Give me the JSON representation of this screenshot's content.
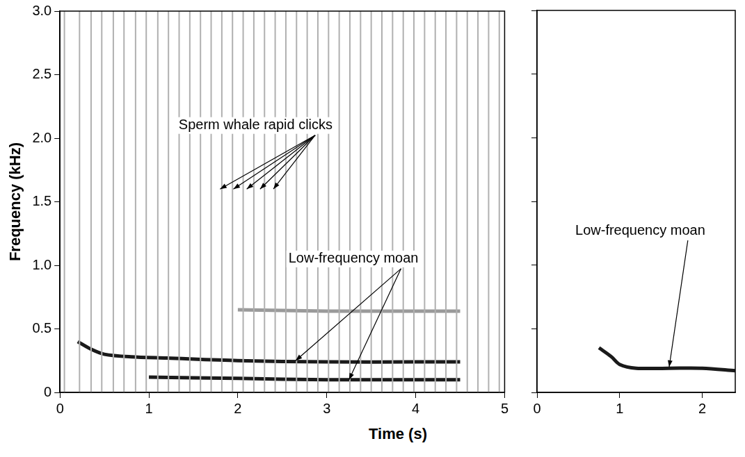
{
  "chart_data": [
    {
      "type": "line",
      "y_label": "Frequency (kHz)",
      "x_label": "Time (s)",
      "xlim": [
        0,
        5
      ],
      "xticks": [
        0,
        1,
        2,
        3,
        4,
        5
      ],
      "ylim": [
        0,
        3
      ],
      "yticks": [
        0,
        0.5,
        {
          "value": 1,
          "label": "1.0"
        },
        1.5,
        {
          "value": 2,
          "label": "2.0"
        },
        2.5,
        {
          "value": 3,
          "label": "3.0"
        }
      ],
      "grid": false,
      "clicks": {
        "color": "#b0b0b0",
        "x": [
          0.05,
          0.22,
          0.35,
          0.47,
          0.6,
          0.72,
          0.85,
          0.97,
          1.1,
          1.22,
          1.34,
          1.46,
          1.58,
          1.7,
          1.82,
          1.94,
          2.06,
          2.18,
          2.3,
          2.42,
          2.54,
          2.66,
          2.78,
          2.9,
          3.02,
          3.14,
          3.26,
          3.38,
          3.5,
          3.62,
          3.74,
          3.86,
          3.98,
          4.1,
          4.22,
          4.34,
          4.46,
          4.58,
          4.7,
          4.82,
          4.94
        ]
      },
      "series": [
        {
          "color": "#1a1a1a",
          "x": [
            0.2,
            0.35,
            0.5,
            0.8,
            1.2,
            2,
            3,
            4,
            4.5
          ],
          "values": [
            0.4,
            0.34,
            0.3,
            0.28,
            0.27,
            0.25,
            0.24,
            0.24,
            0.24
          ]
        },
        {
          "color": "#1a1a1a",
          "x": [
            1,
            2,
            3,
            4,
            4.5
          ],
          "values": [
            0.12,
            0.11,
            0.1,
            0.1,
            0.1
          ]
        },
        {
          "color": "#9a9a9a",
          "x": [
            2,
            3,
            4,
            4.5
          ],
          "values": [
            0.65,
            0.64,
            0.64,
            0.64
          ]
        }
      ],
      "annotations": [
        {
          "text": "Sperm whale rapid clicks",
          "x": 2.2,
          "y": 2.1,
          "arrows": [
            [
              1.8,
              1.6
            ],
            [
              1.95,
              1.6
            ],
            [
              2.1,
              1.6
            ],
            [
              2.25,
              1.6
            ],
            [
              2.4,
              1.6
            ]
          ]
        },
        {
          "text": "Low-frequency moan",
          "x": 3.3,
          "y": 1.05,
          "arrows": [
            [
              2.65,
              0.25
            ],
            [
              3.25,
              0.1
            ]
          ]
        }
      ]
    },
    {
      "type": "line",
      "xlim": [
        0,
        2.4
      ],
      "xticks": [
        0,
        1,
        2
      ],
      "ylim": [
        0,
        3
      ],
      "yticks": [
        0,
        0.5,
        {
          "value": 1,
          "label": "1.0"
        },
        1.5,
        {
          "value": 2,
          "label": "2.0"
        },
        2.5,
        {
          "value": 3,
          "label": "3.0"
        }
      ],
      "grid": false,
      "tick_labels": "x",
      "series": [
        {
          "color": "#1a1a1a",
          "x": [
            0.75,
            0.9,
            1.0,
            1.2,
            1.6,
            2.0,
            2.4
          ],
          "values": [
            0.35,
            0.28,
            0.22,
            0.19,
            0.19,
            0.19,
            0.17
          ]
        }
      ],
      "annotations": [
        {
          "text": "Low-frequency moan",
          "x": 1.25,
          "y": 1.27,
          "arrows": [
            [
              1.6,
              0.2
            ]
          ]
        }
      ]
    }
  ]
}
